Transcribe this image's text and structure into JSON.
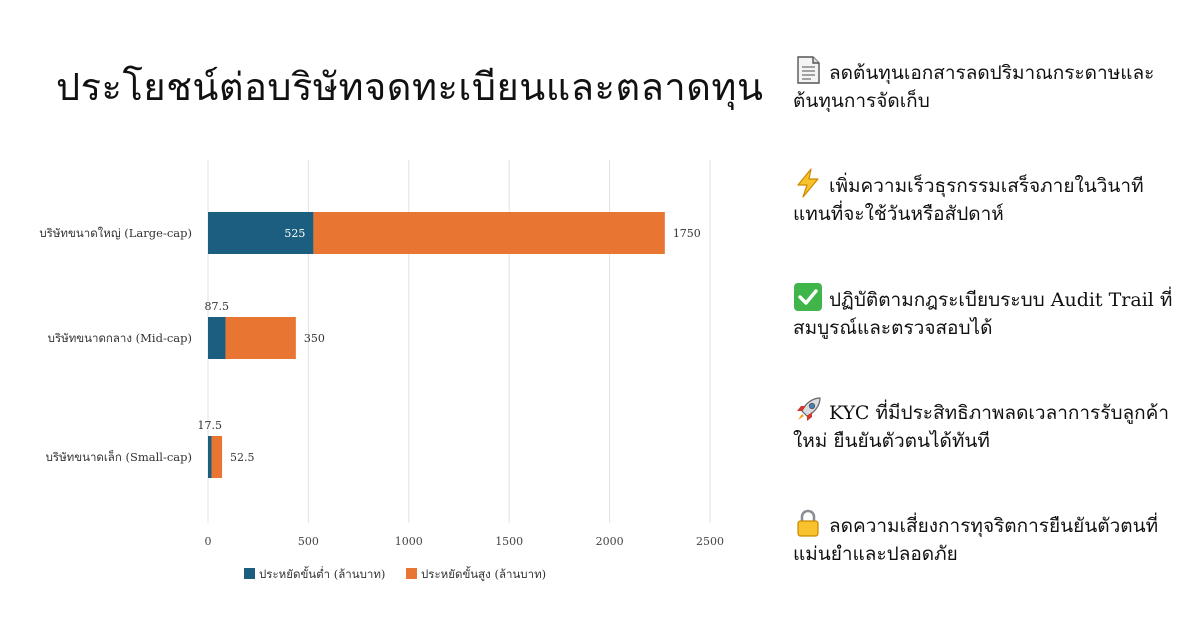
{
  "title": "ประโยชน์ต่อบริษัทจดทะเบียนและตลาดทุน",
  "chart_data": {
    "type": "bar",
    "orientation": "horizontal",
    "stacked": true,
    "categories": [
      "บริษัทขนาดใหญ่ (Large-cap)",
      "บริษัทขนาดกลาง (Mid-cap)",
      "บริษัทขนาดเล็ก (Small-cap)"
    ],
    "series": [
      {
        "name": "ประหยัดขั้นต่ำ (ล้านบาท)",
        "color": "#1b5e80",
        "values": [
          525,
          87.5,
          17.5
        ]
      },
      {
        "name": "ประหยัดขั้นสูง (ล้านบาท)",
        "color": "#e87531",
        "values": [
          1750,
          350,
          52.5
        ]
      }
    ],
    "xticks": [
      "0",
      "500",
      "1000",
      "1500",
      "2000",
      "2500"
    ],
    "xlim": [
      0,
      2500
    ],
    "grid": true,
    "legend_position": "bottom"
  },
  "benefits": [
    {
      "icon": "document-icon",
      "text": "ลดต้นทุนเอกสารลดปริมาณกระดาษและต้นทุนการจัดเก็บ"
    },
    {
      "icon": "lightning-icon",
      "text": "เพิ่มความเร็วธุรกรรมเสร็จภายในวินาทีแทนที่จะใช้วันหรือสัปดาห์"
    },
    {
      "icon": "check-mark-icon",
      "text": "ปฏิบัติตามกฎระเบียบระบบ Audit Trail ที่สมบูรณ์และตรวจสอบได้"
    },
    {
      "icon": "rocket-icon",
      "text": "KYC ที่มีประสิทธิภาพลดเวลาการรับลูกค้าใหม่ ยืนยันตัวตนได้ทันที"
    },
    {
      "icon": "lock-icon",
      "text": "ลดความเสี่ยงการทุจริตการยืนยันตัวตนที่แม่นยำและปลอดภัย"
    }
  ]
}
